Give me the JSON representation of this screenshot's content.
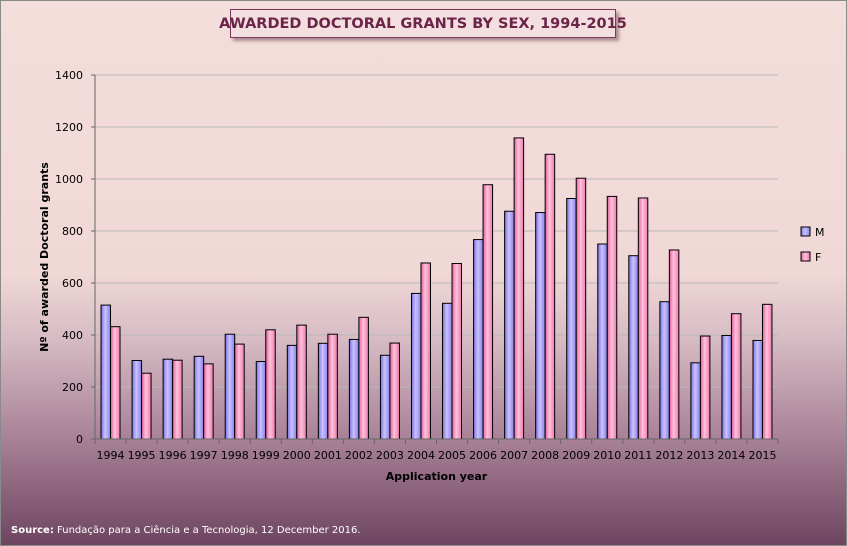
{
  "chart_data": {
    "type": "bar",
    "title": "AWARDED DOCTORAL GRANTS BY SEX, 1994-2015",
    "xlabel": "Application year",
    "ylabel": "Nº of awarded Doctoral grants",
    "ylim": [
      0,
      1400
    ],
    "yticks": [
      0,
      200,
      400,
      600,
      800,
      1000,
      1200,
      1400
    ],
    "grid": true,
    "legend_position": "right",
    "categories": [
      "1994",
      "1995",
      "1996",
      "1997",
      "1998",
      "1999",
      "2000",
      "2001",
      "2002",
      "2003",
      "2004",
      "2005",
      "2006",
      "2007",
      "2008",
      "2009",
      "2010",
      "2011",
      "2012",
      "2013",
      "2014",
      "2015"
    ],
    "series": [
      {
        "name": "M",
        "color": "#9a8ff0",
        "values": [
          515,
          302,
          307,
          318,
          403,
          298,
          360,
          368,
          383,
          322,
          560,
          522,
          767,
          876,
          871,
          925,
          750,
          705,
          528,
          293,
          398,
          379
        ]
      },
      {
        "name": "F",
        "color": "#f07ab0",
        "values": [
          432,
          253,
          303,
          289,
          365,
          420,
          438,
          403,
          468,
          369,
          677,
          675,
          978,
          1158,
          1095,
          1003,
          933,
          927,
          727,
          396,
          482,
          518
        ]
      }
    ]
  },
  "source": {
    "label": "Source:",
    "text": " Fundação para a Ciência e a Tecnologia, 12 December 2016."
  }
}
